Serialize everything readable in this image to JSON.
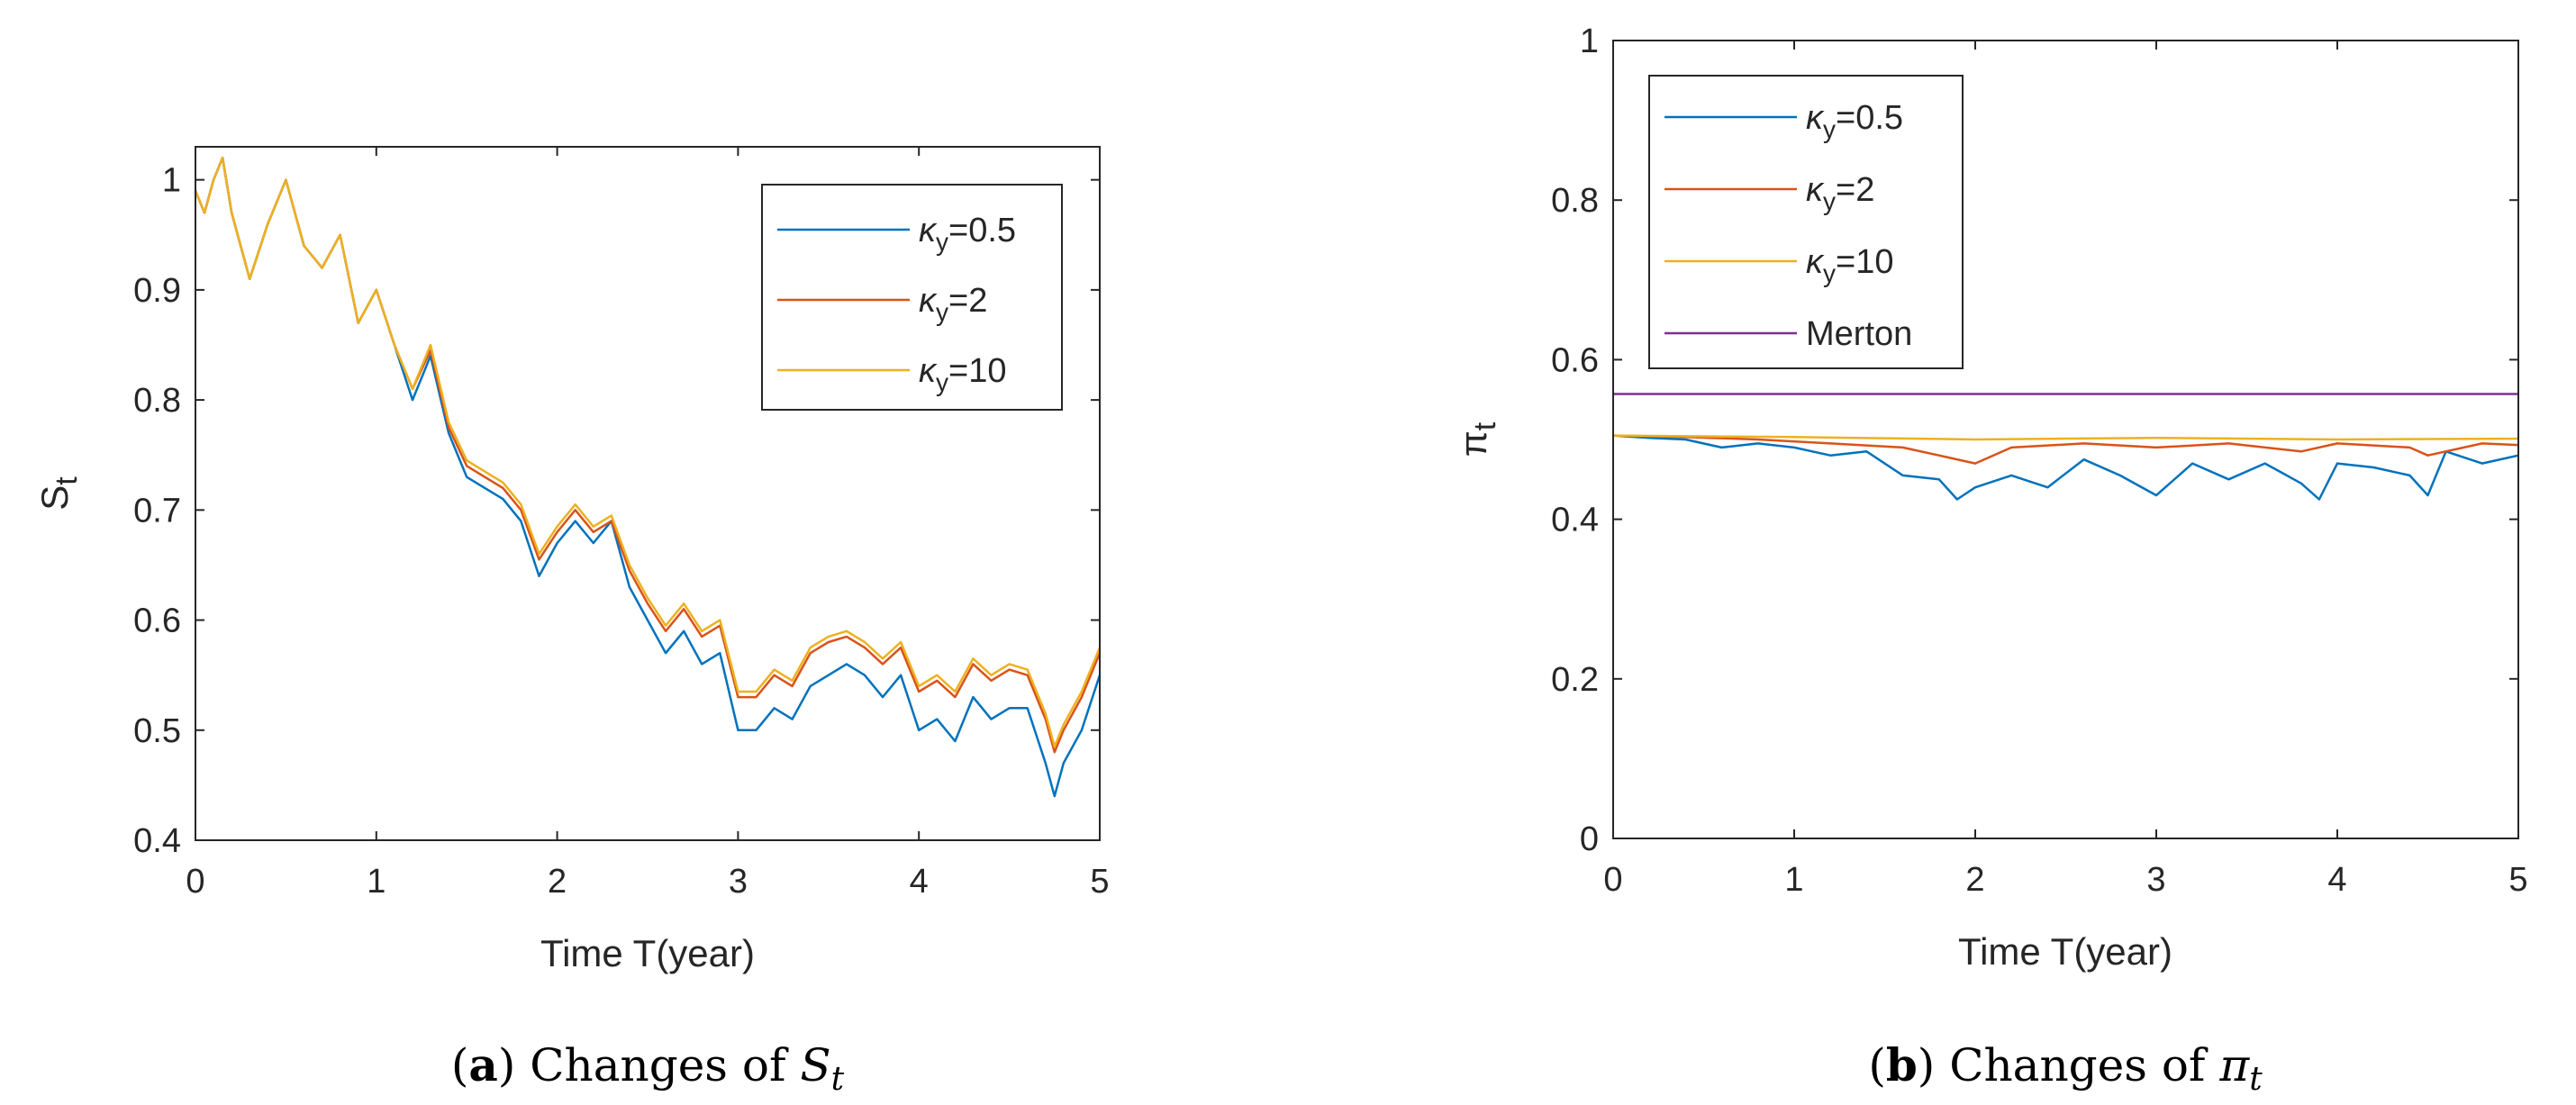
{
  "chart_data": [
    {
      "type": "line",
      "panel": "a",
      "caption": {
        "label": "a",
        "text": "Changes of ",
        "symbol": "S",
        "subscript": "t"
      },
      "xlabel": "Time T(year)",
      "ylabel": {
        "main": "S",
        "sub": "t"
      },
      "xlim": [
        0,
        5
      ],
      "ylim": [
        0.4,
        1.03
      ],
      "xticks": [
        "0",
        "1",
        "2",
        "3",
        "4",
        "5"
      ],
      "yticks": [
        "0.4",
        "0.5",
        "0.6",
        "0.7",
        "0.8",
        "0.9",
        "1"
      ],
      "legend": {
        "position": "top-right"
      },
      "series": [
        {
          "name": "κy=0.5",
          "greek": "κ",
          "sub": "y",
          "value": "=0.5",
          "color": "#0072BD",
          "x": [
            0,
            0.05,
            0.1,
            0.15,
            0.2,
            0.3,
            0.4,
            0.5,
            0.6,
            0.7,
            0.8,
            0.9,
            1.0,
            1.1,
            1.2,
            1.3,
            1.4,
            1.5,
            1.6,
            1.7,
            1.8,
            1.9,
            2.0,
            2.1,
            2.2,
            2.3,
            2.4,
            2.5,
            2.6,
            2.7,
            2.8,
            2.9,
            3.0,
            3.1,
            3.2,
            3.3,
            3.4,
            3.5,
            3.6,
            3.7,
            3.8,
            3.9,
            4.0,
            4.1,
            4.2,
            4.3,
            4.4,
            4.5,
            4.6,
            4.7,
            4.75,
            4.8,
            4.9,
            5.0
          ],
          "y": [
            0.99,
            0.97,
            1.0,
            1.02,
            0.97,
            0.91,
            0.96,
            1.0,
            0.94,
            0.92,
            0.95,
            0.87,
            0.9,
            0.85,
            0.8,
            0.84,
            0.77,
            0.73,
            0.72,
            0.71,
            0.69,
            0.64,
            0.67,
            0.69,
            0.67,
            0.69,
            0.63,
            0.6,
            0.57,
            0.59,
            0.56,
            0.57,
            0.5,
            0.5,
            0.52,
            0.51,
            0.54,
            0.55,
            0.56,
            0.55,
            0.53,
            0.55,
            0.5,
            0.51,
            0.49,
            0.53,
            0.51,
            0.52,
            0.52,
            0.47,
            0.44,
            0.47,
            0.5,
            0.55
          ]
        },
        {
          "name": "κy=2",
          "greek": "κ",
          "sub": "y",
          "value": "=2",
          "color": "#D95319",
          "x": [
            0,
            0.05,
            0.1,
            0.15,
            0.2,
            0.3,
            0.4,
            0.5,
            0.6,
            0.7,
            0.8,
            0.9,
            1.0,
            1.1,
            1.2,
            1.3,
            1.4,
            1.5,
            1.6,
            1.7,
            1.8,
            1.9,
            2.0,
            2.1,
            2.2,
            2.3,
            2.4,
            2.5,
            2.6,
            2.7,
            2.8,
            2.9,
            3.0,
            3.1,
            3.2,
            3.3,
            3.4,
            3.5,
            3.6,
            3.7,
            3.8,
            3.9,
            4.0,
            4.1,
            4.2,
            4.3,
            4.4,
            4.5,
            4.6,
            4.7,
            4.75,
            4.8,
            4.9,
            5.0
          ],
          "y": [
            0.99,
            0.97,
            1.0,
            1.02,
            0.97,
            0.91,
            0.96,
            1.0,
            0.94,
            0.92,
            0.95,
            0.87,
            0.9,
            0.85,
            0.81,
            0.845,
            0.775,
            0.74,
            0.73,
            0.72,
            0.7,
            0.655,
            0.68,
            0.7,
            0.68,
            0.69,
            0.645,
            0.615,
            0.59,
            0.61,
            0.585,
            0.595,
            0.53,
            0.53,
            0.55,
            0.54,
            0.57,
            0.58,
            0.585,
            0.575,
            0.56,
            0.575,
            0.535,
            0.545,
            0.53,
            0.56,
            0.545,
            0.555,
            0.55,
            0.51,
            0.48,
            0.5,
            0.53,
            0.57
          ]
        },
        {
          "name": "κy=10",
          "greek": "κ",
          "sub": "y",
          "value": "=10",
          "color": "#EDB120",
          "x": [
            0,
            0.05,
            0.1,
            0.15,
            0.2,
            0.3,
            0.4,
            0.5,
            0.6,
            0.7,
            0.8,
            0.9,
            1.0,
            1.1,
            1.2,
            1.3,
            1.4,
            1.5,
            1.6,
            1.7,
            1.8,
            1.9,
            2.0,
            2.1,
            2.2,
            2.3,
            2.4,
            2.5,
            2.6,
            2.7,
            2.8,
            2.9,
            3.0,
            3.1,
            3.2,
            3.3,
            3.4,
            3.5,
            3.6,
            3.7,
            3.8,
            3.9,
            4.0,
            4.1,
            4.2,
            4.3,
            4.4,
            4.5,
            4.6,
            4.7,
            4.75,
            4.8,
            4.9,
            5.0
          ],
          "y": [
            0.99,
            0.97,
            1.0,
            1.02,
            0.97,
            0.91,
            0.96,
            1.0,
            0.94,
            0.92,
            0.95,
            0.87,
            0.9,
            0.85,
            0.81,
            0.85,
            0.78,
            0.745,
            0.735,
            0.725,
            0.705,
            0.66,
            0.685,
            0.705,
            0.685,
            0.695,
            0.65,
            0.62,
            0.595,
            0.615,
            0.59,
            0.6,
            0.535,
            0.535,
            0.555,
            0.545,
            0.575,
            0.585,
            0.59,
            0.58,
            0.565,
            0.58,
            0.54,
            0.55,
            0.535,
            0.565,
            0.55,
            0.56,
            0.555,
            0.515,
            0.485,
            0.505,
            0.535,
            0.575
          ]
        }
      ]
    },
    {
      "type": "line",
      "panel": "b",
      "caption": {
        "label": "b",
        "text": "Changes of ",
        "symbol": "π",
        "subscript": "t"
      },
      "xlabel": "Time T(year)",
      "ylabel": {
        "main": "π",
        "sub": "t"
      },
      "xlim": [
        0,
        5
      ],
      "ylim": [
        0,
        1
      ],
      "xticks": [
        "0",
        "1",
        "2",
        "3",
        "4",
        "5"
      ],
      "yticks": [
        "0",
        "0.2",
        "0.4",
        "0.6",
        "0.8",
        "1"
      ],
      "legend": {
        "position": "top-left"
      },
      "series": [
        {
          "name": "κy=0.5",
          "greek": "κ",
          "sub": "y",
          "value": "=0.5",
          "color": "#0072BD",
          "x": [
            0,
            0.2,
            0.4,
            0.6,
            0.8,
            1.0,
            1.2,
            1.4,
            1.6,
            1.8,
            1.9,
            2.0,
            2.2,
            2.4,
            2.6,
            2.8,
            3.0,
            3.2,
            3.4,
            3.6,
            3.8,
            3.9,
            4.0,
            4.2,
            4.4,
            4.5,
            4.6,
            4.8,
            5.0
          ],
          "y": [
            0.505,
            0.502,
            0.5,
            0.49,
            0.495,
            0.49,
            0.48,
            0.485,
            0.455,
            0.45,
            0.425,
            0.44,
            0.455,
            0.44,
            0.475,
            0.455,
            0.43,
            0.47,
            0.45,
            0.47,
            0.445,
            0.425,
            0.47,
            0.465,
            0.455,
            0.43,
            0.485,
            0.47,
            0.48
          ]
        },
        {
          "name": "κy=2",
          "greek": "κ",
          "sub": "y",
          "value": "=2",
          "color": "#D95319",
          "x": [
            0,
            0.4,
            0.8,
            1.2,
            1.6,
            1.8,
            2.0,
            2.2,
            2.6,
            3.0,
            3.4,
            3.8,
            4.0,
            4.4,
            4.5,
            4.8,
            5.0
          ],
          "y": [
            0.505,
            0.503,
            0.5,
            0.495,
            0.49,
            0.48,
            0.47,
            0.49,
            0.495,
            0.49,
            0.495,
            0.485,
            0.495,
            0.49,
            0.48,
            0.495,
            0.493
          ]
        },
        {
          "name": "κy=10",
          "greek": "κ",
          "sub": "y",
          "value": "=10",
          "color": "#EDB120",
          "x": [
            0,
            1,
            2,
            3,
            4,
            5
          ],
          "y": [
            0.505,
            0.503,
            0.5,
            0.502,
            0.5,
            0.501
          ]
        },
        {
          "name": "Merton",
          "color": "#7E2F8E",
          "x": [
            0,
            5
          ],
          "y": [
            0.557,
            0.557
          ]
        }
      ]
    }
  ]
}
